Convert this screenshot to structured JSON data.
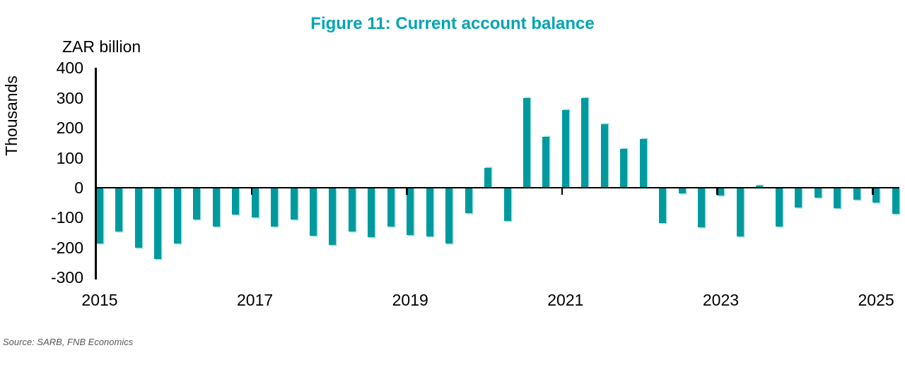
{
  "title": "Figure 11: Current account balance",
  "y_axis": {
    "unit_label": "ZAR billion",
    "rotated_label": "Thousands",
    "ticks": [
      400,
      300,
      200,
      100,
      0,
      -100,
      -200,
      -300
    ]
  },
  "x_axis": {
    "labels": [
      "2015",
      "2017",
      "2019",
      "2021",
      "2023",
      "2025"
    ]
  },
  "source": "Source: SARB, FNB Economics",
  "colors": {
    "title": "#00a5b2",
    "bar": "#009a9e",
    "bar_highlight": "rgba(140,210,212,0.8)",
    "axis": "#000000",
    "source_text": "#58585a"
  },
  "chart_data": {
    "type": "bar",
    "title": "Figure 11: Current account balance",
    "xlabel": "",
    "ylabel": "ZAR billion",
    "ylim": [
      -300,
      400
    ],
    "grid": false,
    "legend": "none",
    "bar_color": "#009a9e",
    "x_labeled_years": [
      "2015",
      "2017",
      "2019",
      "2021",
      "2023",
      "2025"
    ],
    "categories": [
      "2015Q1",
      "2015Q2",
      "2015Q3",
      "2015Q4",
      "2016Q1",
      "2016Q2",
      "2016Q3",
      "2016Q4",
      "2017Q1",
      "2017Q2",
      "2017Q3",
      "2017Q4",
      "2018Q1",
      "2018Q2",
      "2018Q3",
      "2018Q4",
      "2019Q1",
      "2019Q2",
      "2019Q3",
      "2019Q4",
      "2020Q1",
      "2020Q2",
      "2020Q3",
      "2020Q4",
      "2021Q1",
      "2021Q2",
      "2021Q3",
      "2021Q4",
      "2022Q1",
      "2022Q2",
      "2022Q3",
      "2022Q4",
      "2023Q1",
      "2023Q2",
      "2023Q3",
      "2023Q4",
      "2024Q1",
      "2024Q2",
      "2024Q3",
      "2024Q4",
      "2025Q1",
      "2025Q2"
    ],
    "values": [
      -185,
      -145,
      -200,
      -238,
      -185,
      -105,
      -130,
      -90,
      -100,
      -130,
      -105,
      -160,
      -190,
      -145,
      -165,
      -130,
      -158,
      -162,
      -185,
      -85,
      65,
      -110,
      300,
      170,
      258,
      300,
      212,
      130,
      162,
      -117,
      -20,
      -132,
      -27,
      -163,
      8,
      -130,
      -66,
      -34,
      -68,
      -40,
      -50,
      -88
    ]
  }
}
